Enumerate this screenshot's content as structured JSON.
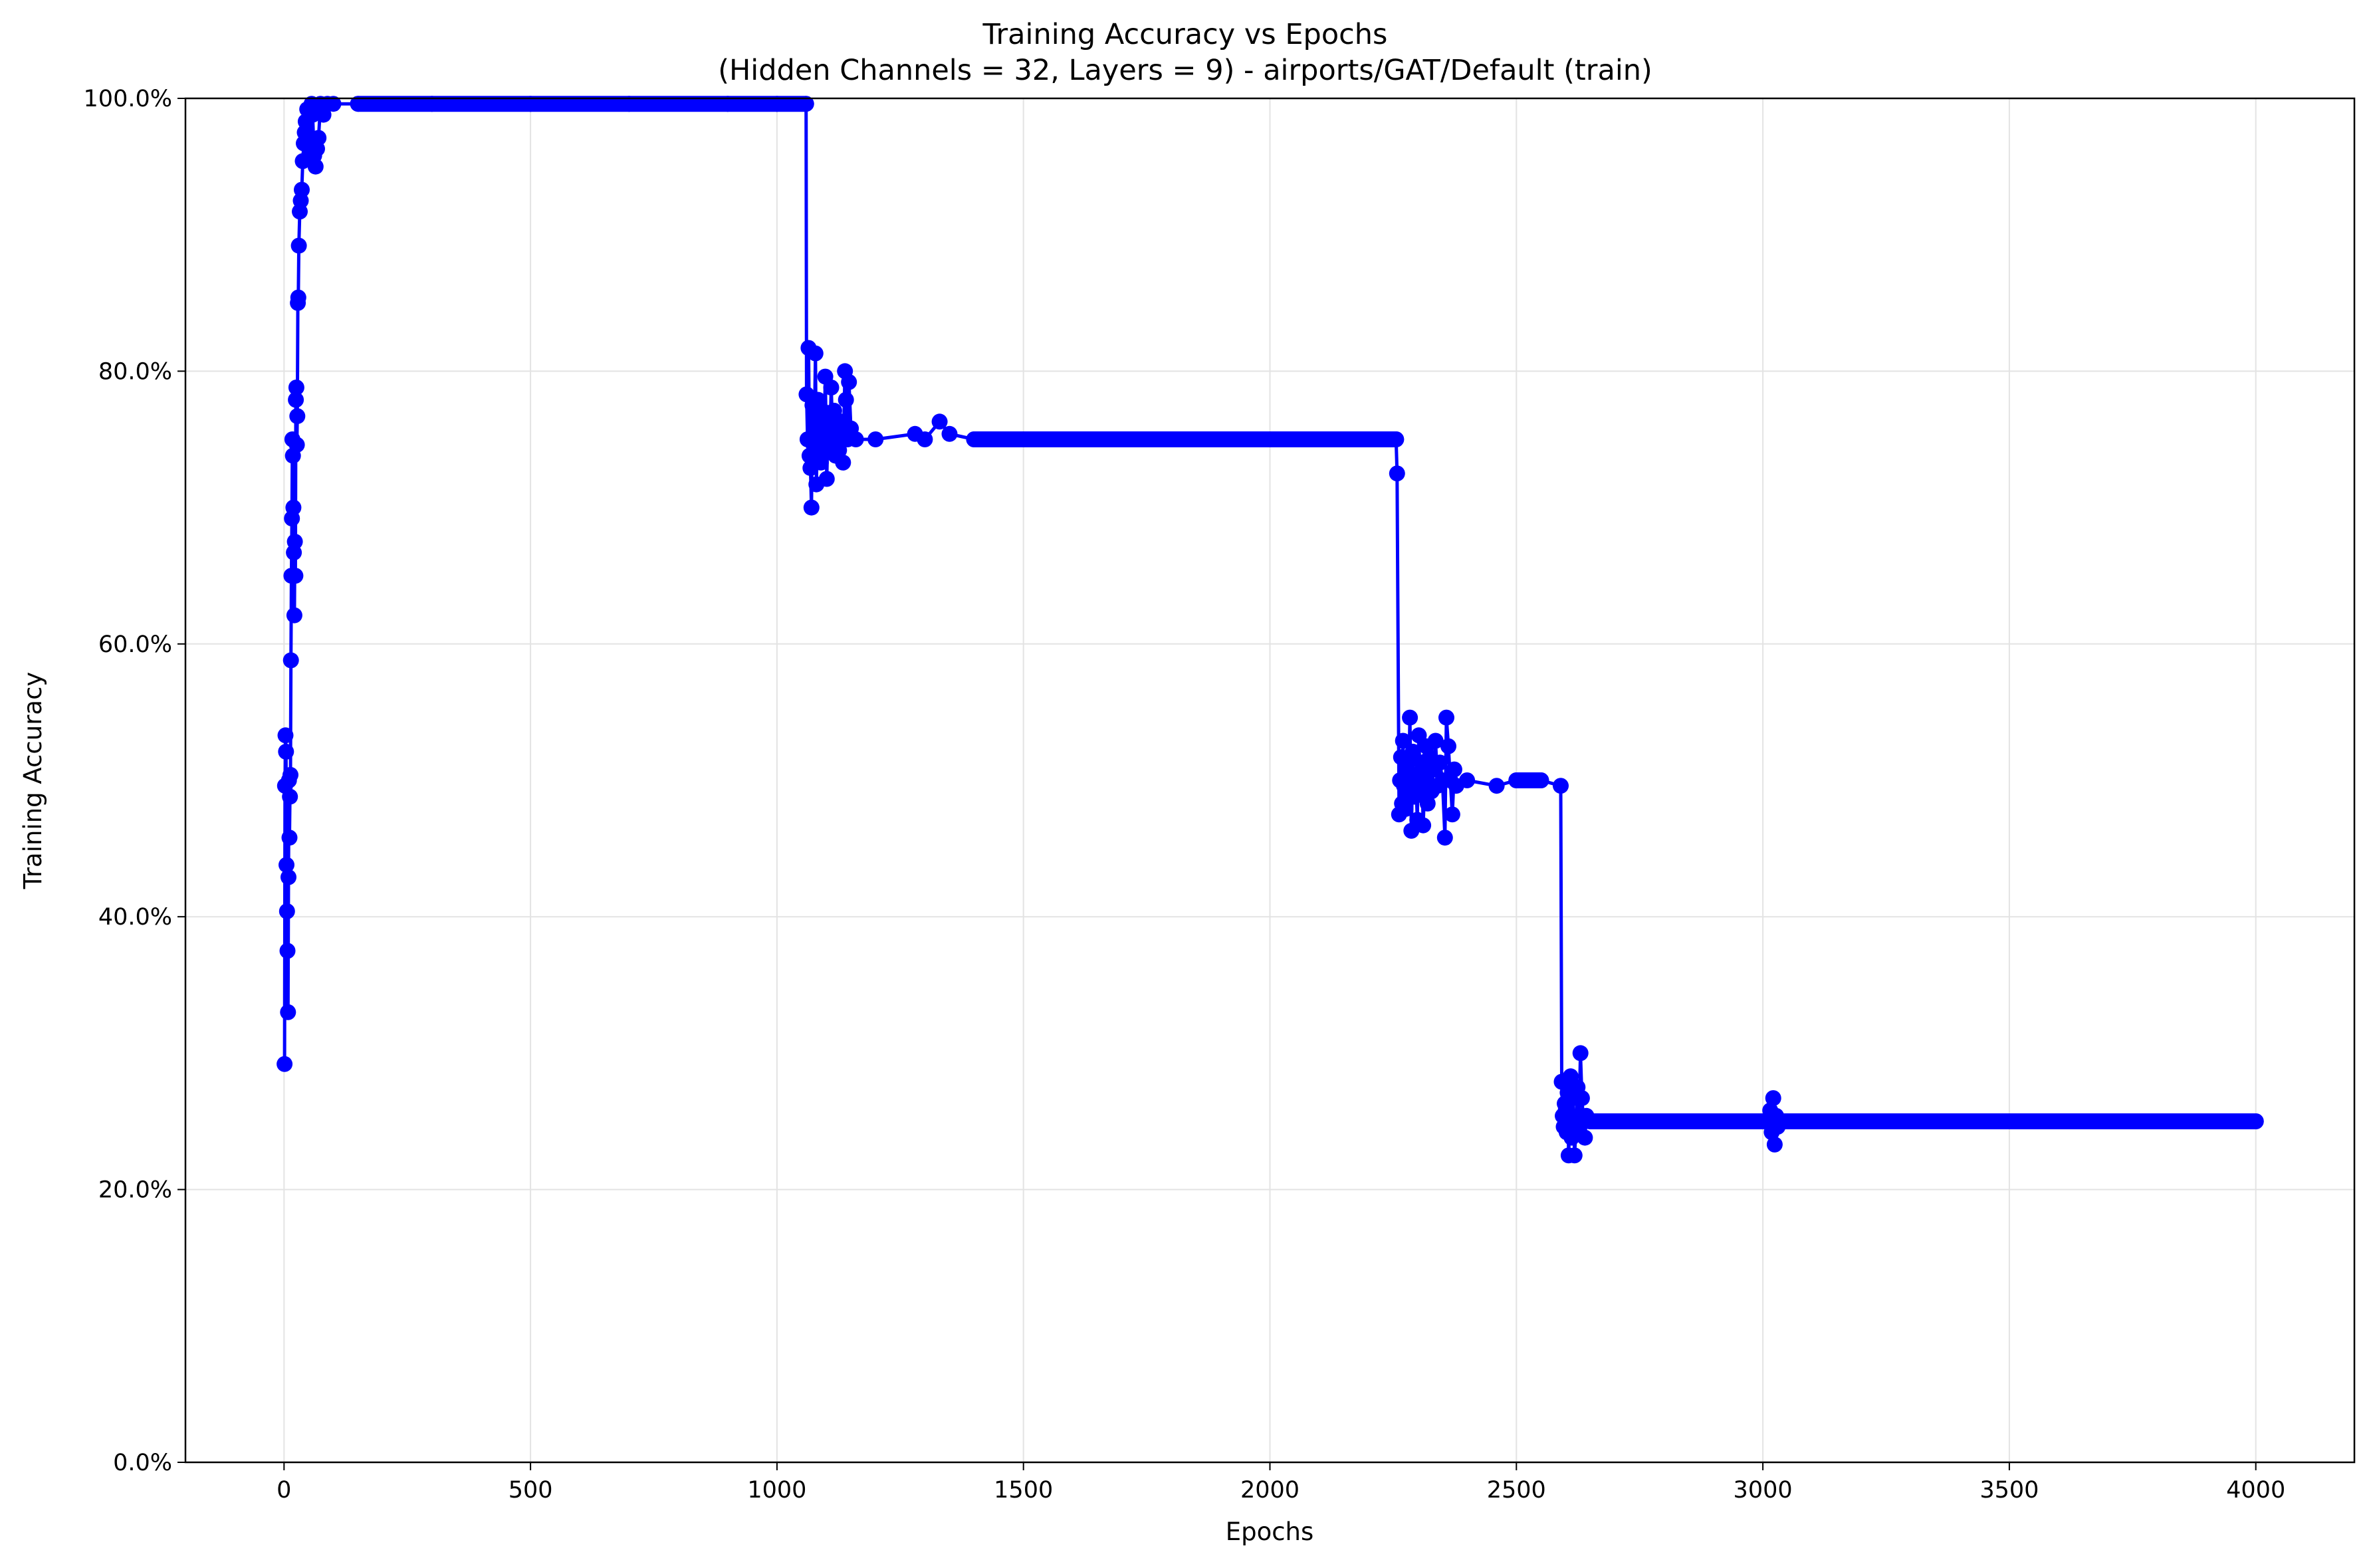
{
  "chart_data": {
    "type": "line",
    "title": "Training Accuracy vs Epochs",
    "subtitle": "(Hidden Channels = 32, Layers = 9) - airports/GAT/Default (train)",
    "xlabel": "Epochs",
    "ylabel": "Training Accuracy",
    "xlim": [
      -200,
      4200
    ],
    "ylim": [
      0,
      100
    ],
    "x_ticks": [
      0,
      500,
      1000,
      1500,
      2000,
      2500,
      3000,
      3500,
      4000
    ],
    "y_ticks": [
      0,
      20,
      40,
      60,
      80,
      100
    ],
    "x_tick_labels": [
      "0",
      "500",
      "1000",
      "1500",
      "2000",
      "2500",
      "3000",
      "3500",
      "4000"
    ],
    "y_tick_labels": [
      "0.0%",
      "20.0%",
      "40.0%",
      "60.0%",
      "80.0%",
      "100.0%"
    ],
    "grid": true,
    "legend": "none",
    "series": [
      {
        "color": "#0000ff",
        "marker": "circle",
        "points": [
          [
            1,
            29.2
          ],
          [
            2,
            49.6
          ],
          [
            3,
            53.3
          ],
          [
            4,
            52.1
          ],
          [
            5,
            43.8
          ],
          [
            6,
            40.4
          ],
          [
            7,
            37.5
          ],
          [
            8,
            33.0
          ],
          [
            9,
            42.9
          ],
          [
            10,
            50.0
          ],
          [
            11,
            45.8
          ],
          [
            12,
            48.8
          ],
          [
            13,
            50.4
          ],
          [
            14,
            58.8
          ],
          [
            15,
            65.0
          ],
          [
            16,
            69.2
          ],
          [
            17,
            75.0
          ],
          [
            18,
            73.8
          ],
          [
            19,
            70.0
          ],
          [
            20,
            66.7
          ],
          [
            21,
            62.1
          ],
          [
            22,
            67.5
          ],
          [
            23,
            65.0
          ],
          [
            24,
            77.9
          ],
          [
            25,
            78.8
          ],
          [
            26,
            74.6
          ],
          [
            27,
            76.7
          ],
          [
            28,
            85.0
          ],
          [
            29,
            85.4
          ],
          [
            30,
            89.2
          ],
          [
            32,
            91.7
          ],
          [
            34,
            92.5
          ],
          [
            36,
            93.3
          ],
          [
            38,
            95.4
          ],
          [
            40,
            96.7
          ],
          [
            42,
            97.5
          ],
          [
            44,
            98.3
          ],
          [
            47,
            99.2
          ],
          [
            50,
            97.1
          ],
          [
            53,
            96.3
          ],
          [
            56,
            99.6
          ],
          [
            58,
            98.8
          ],
          [
            61,
            95.8
          ],
          [
            64,
            95.0
          ],
          [
            67,
            96.3
          ],
          [
            70,
            97.1
          ],
          [
            74,
            99.6
          ],
          [
            80,
            98.8
          ],
          [
            88,
            99.6
          ],
          [
            100,
            99.6
          ],
          [
            150,
            99.6
          ],
          [
            300,
            99.6
          ],
          [
            500,
            99.6
          ],
          [
            700,
            99.6
          ],
          [
            900,
            99.6
          ],
          [
            1000,
            99.6
          ],
          [
            1059,
            99.6
          ],
          [
            1060,
            78.3
          ],
          [
            1062,
            75.0
          ],
          [
            1064,
            81.7
          ],
          [
            1066,
            73.8
          ],
          [
            1068,
            72.9
          ],
          [
            1070,
            70.0
          ],
          [
            1072,
            77.5
          ],
          [
            1074,
            74.6
          ],
          [
            1076,
            76.3
          ],
          [
            1078,
            81.3
          ],
          [
            1080,
            71.7
          ],
          [
            1083,
            77.9
          ],
          [
            1086,
            75.4
          ],
          [
            1089,
            73.3
          ],
          [
            1092,
            77.1
          ],
          [
            1095,
            74.2
          ],
          [
            1098,
            79.6
          ],
          [
            1101,
            72.1
          ],
          [
            1104,
            76.7
          ],
          [
            1107,
            74.6
          ],
          [
            1110,
            78.8
          ],
          [
            1113,
            75.4
          ],
          [
            1116,
            77.1
          ],
          [
            1119,
            73.8
          ],
          [
            1122,
            75.8
          ],
          [
            1126,
            74.2
          ],
          [
            1130,
            76.3
          ],
          [
            1134,
            73.3
          ],
          [
            1138,
            80.0
          ],
          [
            1140,
            77.9
          ],
          [
            1143,
            75.0
          ],
          [
            1146,
            79.2
          ],
          [
            1150,
            75.8
          ],
          [
            1160,
            75.0
          ],
          [
            1200,
            75.0
          ],
          [
            1280,
            75.4
          ],
          [
            1300,
            75.0
          ],
          [
            1330,
            76.3
          ],
          [
            1350,
            75.4
          ],
          [
            1400,
            75.0
          ],
          [
            1600,
            75.0
          ],
          [
            1800,
            75.0
          ],
          [
            2000,
            75.0
          ],
          [
            2200,
            75.0
          ],
          [
            2256,
            75.0
          ],
          [
            2258,
            72.5
          ],
          [
            2262,
            47.5
          ],
          [
            2264,
            50.0
          ],
          [
            2266,
            51.7
          ],
          [
            2268,
            48.3
          ],
          [
            2270,
            52.9
          ],
          [
            2272,
            49.6
          ],
          [
            2275,
            47.9
          ],
          [
            2278,
            50.8
          ],
          [
            2281,
            49.2
          ],
          [
            2284,
            54.6
          ],
          [
            2287,
            46.3
          ],
          [
            2290,
            52.1
          ],
          [
            2293,
            48.8
          ],
          [
            2296,
            50.4
          ],
          [
            2299,
            47.1
          ],
          [
            2302,
            53.3
          ],
          [
            2305,
            49.6
          ],
          [
            2308,
            51.3
          ],
          [
            2311,
            46.7
          ],
          [
            2314,
            50.0
          ],
          [
            2317,
            52.5
          ],
          [
            2320,
            48.3
          ],
          [
            2324,
            51.7
          ],
          [
            2328,
            49.2
          ],
          [
            2332,
            50.8
          ],
          [
            2336,
            52.9
          ],
          [
            2340,
            49.6
          ],
          [
            2345,
            51.3
          ],
          [
            2350,
            50.0
          ],
          [
            2355,
            45.8
          ],
          [
            2358,
            54.6
          ],
          [
            2362,
            52.5
          ],
          [
            2366,
            50.0
          ],
          [
            2370,
            47.5
          ],
          [
            2374,
            50.8
          ],
          [
            2378,
            49.6
          ],
          [
            2400,
            50.0
          ],
          [
            2460,
            49.6
          ],
          [
            2500,
            50.0
          ],
          [
            2550,
            50.0
          ],
          [
            2590,
            49.6
          ],
          [
            2592,
            27.9
          ],
          [
            2594,
            25.4
          ],
          [
            2596,
            24.6
          ],
          [
            2598,
            26.3
          ],
          [
            2600,
            25.8
          ],
          [
            2602,
            24.2
          ],
          [
            2604,
            27.1
          ],
          [
            2606,
            22.5
          ],
          [
            2608,
            25.0
          ],
          [
            2610,
            28.3
          ],
          [
            2612,
            23.8
          ],
          [
            2615,
            26.7
          ],
          [
            2618,
            22.5
          ],
          [
            2621,
            24.6
          ],
          [
            2624,
            27.5
          ],
          [
            2627,
            25.4
          ],
          [
            2630,
            30.0
          ],
          [
            2633,
            26.7
          ],
          [
            2636,
            25.0
          ],
          [
            2639,
            23.8
          ],
          [
            2642,
            25.4
          ],
          [
            2650,
            25.0
          ],
          [
            2800,
            25.0
          ],
          [
            3000,
            25.0
          ],
          [
            3015,
            25.8
          ],
          [
            3018,
            24.2
          ],
          [
            3021,
            26.7
          ],
          [
            3024,
            23.3
          ],
          [
            3027,
            25.4
          ],
          [
            3030,
            24.6
          ],
          [
            3035,
            25.0
          ],
          [
            3200,
            25.0
          ],
          [
            3500,
            25.0
          ],
          [
            3800,
            25.0
          ],
          [
            4000,
            25.0
          ]
        ]
      }
    ]
  }
}
